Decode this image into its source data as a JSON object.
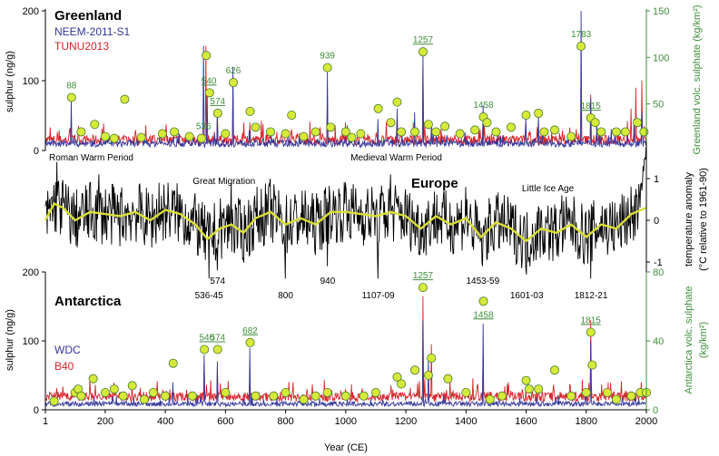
{
  "colors": {
    "neem": "#35369a",
    "tunu": "#d8232a",
    "europe": "#000000",
    "smooth": "#d8df36",
    "volc_fill": "#d6ea3a",
    "volc_stroke": "#4a7a2a",
    "green_text": "#3f8f3a"
  },
  "x_axis": {
    "label": "Year (CE)",
    "ticks": [
      "1",
      "200",
      "400",
      "600",
      "800",
      "1000",
      "1200",
      "1400",
      "1600",
      "1800",
      "2000"
    ],
    "tick_values": [
      1,
      200,
      400,
      600,
      800,
      1000,
      1200,
      1400,
      1600,
      1800,
      2000
    ]
  },
  "greenland": {
    "title": "Greenland",
    "legend": [
      {
        "name": "NEEM-2011-S1",
        "color_key": "neem"
      },
      {
        "name": "TUNU2013",
        "color_key": "tunu"
      }
    ],
    "ylabel_left": "sulphur (ng/g)",
    "ylabel_right": "Greenland volc. sulphate (kg/km²)",
    "left_ticks": [
      "0",
      "100",
      "200"
    ],
    "left_tick_values": [
      0,
      100,
      200
    ],
    "right_ticks": [
      "50",
      "100",
      "150"
    ],
    "right_tick_values": [
      50,
      100,
      150
    ],
    "eruption_labels": [
      {
        "text": "88",
        "year": 88,
        "underline": false
      },
      {
        "text": "536",
        "year": 527,
        "underline": false
      },
      {
        "text": "540",
        "year": 545,
        "underline": true
      },
      {
        "text": "574",
        "year": 574,
        "underline": true
      },
      {
        "text": "626",
        "year": 626,
        "underline": false
      },
      {
        "text": "939",
        "year": 939,
        "underline": false
      },
      {
        "text": "1257",
        "year": 1257,
        "underline": true
      },
      {
        "text": "1458",
        "year": 1458,
        "underline": false
      },
      {
        "text": "1783",
        "year": 1783,
        "underline": false
      },
      {
        "text": "1815",
        "year": 1815,
        "underline": true
      }
    ]
  },
  "europe": {
    "title": "Europe",
    "ylabel_right_1": "temperature anomaly",
    "ylabel_right_2": "(°C relative to 1961-90)",
    "right_ticks": [
      "-1",
      "0",
      "1"
    ],
    "right_tick_values": [
      -1,
      0,
      1
    ],
    "period_labels": [
      {
        "text": "Roman Warm Period",
        "year": 0
      },
      {
        "text": "Great Migration",
        "year": 485
      },
      {
        "text": "Medieval Warm Period",
        "year": 1010
      },
      {
        "text": "Little Ice Age",
        "year": 1580
      }
    ],
    "cold_labels": [
      {
        "text": "574",
        "year": 574,
        "row": 1
      },
      {
        "text": "536-45",
        "year": 545,
        "row": 2
      },
      {
        "text": "800",
        "year": 800,
        "row": 2
      },
      {
        "text": "940",
        "year": 940,
        "row": 1
      },
      {
        "text": "1107-09",
        "year": 1108,
        "row": 2
      },
      {
        "text": "1453-59",
        "year": 1456,
        "row": 1
      },
      {
        "text": "1601-03",
        "year": 1602,
        "row": 2
      },
      {
        "text": "1812-21",
        "year": 1816,
        "row": 2
      }
    ]
  },
  "antarctica": {
    "title": "Antarctica",
    "legend": [
      {
        "name": "WDC",
        "color_key": "neem"
      },
      {
        "name": "B40",
        "color_key": "tunu"
      }
    ],
    "ylabel_left": "sulphur (ng/g)",
    "ylabel_right_1": "Antarctica volc. sulphate",
    "ylabel_right_2": "(kg/km²)",
    "left_ticks": [
      "0",
      "100",
      "200"
    ],
    "left_tick_values": [
      0,
      100,
      200
    ],
    "right_ticks": [
      "0",
      "40",
      "80"
    ],
    "right_tick_values": [
      0,
      40,
      80
    ],
    "eruption_labels": [
      {
        "text": "540",
        "year": 538,
        "underline": true
      },
      {
        "text": "574",
        "year": 574,
        "underline": true
      },
      {
        "text": "682",
        "year": 682,
        "underline": true
      },
      {
        "text": "1257",
        "year": 1257,
        "underline": true
      },
      {
        "text": "1458",
        "year": 1458,
        "underline": true
      },
      {
        "text": "1815",
        "year": 1815,
        "underline": true
      }
    ]
  },
  "chart_data": [
    {
      "type": "line",
      "title": "Greenland",
      "xlabel": "Year (CE)",
      "ylabel": "sulphur (ng/g)",
      "xlim": [
        1,
        2000
      ],
      "ylim": [
        0,
        200
      ],
      "y2label": "Greenland volc. sulphate (kg/km²)",
      "y2lim": [
        0,
        150
      ],
      "series": [
        {
          "name": "NEEM-2011-S1",
          "peaks": [
            [
              88,
              72
            ],
            [
              527,
              150
            ],
            [
              540,
              85
            ],
            [
              574,
              58
            ],
            [
              626,
              120
            ],
            [
              939,
              115
            ],
            [
              1108,
              45
            ],
            [
              1171,
              60
            ],
            [
              1230,
              55
            ],
            [
              1257,
              140
            ],
            [
              1285,
              40
            ],
            [
              1458,
              65
            ],
            [
              1600,
              45
            ],
            [
              1641,
              50
            ],
            [
              1783,
              200
            ],
            [
              1815,
              75
            ],
            [
              1835,
              40
            ],
            [
              1960,
              45
            ],
            [
              1985,
              55
            ]
          ]
        },
        {
          "name": "TUNU2013",
          "peaks": [
            [
              536,
              150
            ],
            [
              574,
              50
            ],
            [
              626,
              80
            ],
            [
              682,
              40
            ],
            [
              820,
              30
            ],
            [
              939,
              80
            ],
            [
              1000,
              40
            ],
            [
              1171,
              50
            ],
            [
              1257,
              120
            ],
            [
              1458,
              45
            ],
            [
              1600,
              40
            ],
            [
              1783,
              120
            ],
            [
              1815,
              80
            ],
            [
              1950,
              60
            ],
            [
              1965,
              90
            ],
            [
              1985,
              100
            ]
          ]
        }
      ],
      "volcanic_sulphate": [
        [
          88,
          57
        ],
        [
          120,
          20
        ],
        [
          165,
          28
        ],
        [
          200,
          15
        ],
        [
          230,
          13
        ],
        [
          265,
          55
        ],
        [
          320,
          14
        ],
        [
          390,
          18
        ],
        [
          430,
          20
        ],
        [
          480,
          15
        ],
        [
          520,
          13
        ],
        [
          536,
          102
        ],
        [
          547,
          62
        ],
        [
          574,
          40
        ],
        [
          600,
          18
        ],
        [
          626,
          73
        ],
        [
          682,
          42
        ],
        [
          700,
          25
        ],
        [
          750,
          20
        ],
        [
          800,
          18
        ],
        [
          820,
          38
        ],
        [
          860,
          15
        ],
        [
          900,
          20
        ],
        [
          939,
          89
        ],
        [
          950,
          25
        ],
        [
          1000,
          20
        ],
        [
          1020,
          14
        ],
        [
          1050,
          18
        ],
        [
          1108,
          45
        ],
        [
          1150,
          30
        ],
        [
          1171,
          52
        ],
        [
          1185,
          20
        ],
        [
          1230,
          20
        ],
        [
          1257,
          106
        ],
        [
          1275,
          28
        ],
        [
          1300,
          20
        ],
        [
          1330,
          26
        ],
        [
          1380,
          18
        ],
        [
          1430,
          22
        ],
        [
          1458,
          36
        ],
        [
          1470,
          30
        ],
        [
          1500,
          20
        ],
        [
          1550,
          25
        ],
        [
          1600,
          38
        ],
        [
          1641,
          40
        ],
        [
          1660,
          20
        ],
        [
          1695,
          22
        ],
        [
          1750,
          15
        ],
        [
          1783,
          112
        ],
        [
          1815,
          35
        ],
        [
          1830,
          30
        ],
        [
          1850,
          20
        ],
        [
          1900,
          20
        ],
        [
          1930,
          20
        ],
        [
          1970,
          30
        ],
        [
          1992,
          20
        ]
      ]
    },
    {
      "type": "line",
      "title": "Europe",
      "xlabel": "Year (CE)",
      "ylabel": "temperature anomaly (°C relative to 1961-90)",
      "xlim": [
        1,
        2000
      ],
      "ylim": [
        -1.6,
        1.9
      ],
      "series": [
        {
          "name": "",
          "minima": [
            [
              574,
              -1.2
            ],
            [
              545,
              -1.4
            ],
            [
              800,
              -1.4
            ],
            [
              940,
              -1.1
            ],
            [
              1108,
              -1.4
            ],
            [
              1456,
              -1.1
            ],
            [
              1602,
              -1.3
            ],
            [
              1816,
              -1.4
            ]
          ],
          "maxima": [
            [
              40,
              1.4
            ],
            [
              180,
              1.1
            ],
            [
              380,
              0.9
            ],
            [
              620,
              0.9
            ],
            [
              750,
              1.0
            ],
            [
              1000,
              0.9
            ],
            [
              1150,
              1.1
            ],
            [
              1400,
              0.8
            ],
            [
              1720,
              0.6
            ],
            [
              2000,
              1.8
            ]
          ]
        },
        {
          "name": "",
          "smoothed": [
            [
              1,
              0.0
            ],
            [
              30,
              0.4
            ],
            [
              60,
              0.3
            ],
            [
              100,
              0.0
            ],
            [
              150,
              0.2
            ],
            [
              200,
              0.15
            ],
            [
              250,
              0.1
            ],
            [
              300,
              0.2
            ],
            [
              350,
              0.0
            ],
            [
              400,
              0.25
            ],
            [
              450,
              0.15
            ],
            [
              500,
              -0.1
            ],
            [
              540,
              -0.45
            ],
            [
              580,
              -0.2
            ],
            [
              620,
              -0.1
            ],
            [
              660,
              -0.3
            ],
            [
              700,
              0.05
            ],
            [
              750,
              0.2
            ],
            [
              800,
              -0.1
            ],
            [
              850,
              0.05
            ],
            [
              900,
              -0.1
            ],
            [
              950,
              0.2
            ],
            [
              1000,
              0.2
            ],
            [
              1050,
              0.15
            ],
            [
              1100,
              0.1
            ],
            [
              1150,
              0.2
            ],
            [
              1200,
              0.1
            ],
            [
              1250,
              -0.2
            ],
            [
              1300,
              0.1
            ],
            [
              1350,
              -0.1
            ],
            [
              1400,
              0.05
            ],
            [
              1450,
              -0.4
            ],
            [
              1500,
              -0.05
            ],
            [
              1550,
              -0.2
            ],
            [
              1600,
              -0.5
            ],
            [
              1650,
              -0.2
            ],
            [
              1700,
              -0.3
            ],
            [
              1750,
              -0.1
            ],
            [
              1800,
              -0.4
            ],
            [
              1850,
              -0.1
            ],
            [
              1900,
              -0.2
            ],
            [
              1950,
              0.15
            ],
            [
              2000,
              0.3
            ]
          ]
        }
      ]
    },
    {
      "type": "line",
      "title": "Antarctica",
      "xlabel": "Year (CE)",
      "ylabel": "sulphur (ng/g)",
      "xlim": [
        1,
        2000
      ],
      "ylim": [
        0,
        200
      ],
      "y2label": "Antarctica volc. sulphate (kg/km²)",
      "y2lim": [
        0,
        80
      ],
      "series": [
        {
          "name": "WDC",
          "peaks": [
            [
              426,
              40
            ],
            [
              530,
              80
            ],
            [
              574,
              70
            ],
            [
              682,
              90
            ],
            [
              1257,
              130
            ],
            [
              1275,
              75
            ],
            [
              1458,
              125
            ],
            [
              1815,
              100
            ]
          ]
        },
        {
          "name": "B40",
          "peaks": [
            [
              100,
              30
            ],
            [
              530,
              70
            ],
            [
              574,
              60
            ],
            [
              682,
              55
            ],
            [
              1000,
              30
            ],
            [
              1257,
              165
            ],
            [
              1285,
              95
            ],
            [
              1458,
              80
            ],
            [
              1600,
              30
            ],
            [
              1815,
              130
            ]
          ]
        }
      ],
      "volcanic_sulphate": [
        [
          30,
          5
        ],
        [
          100,
          10
        ],
        [
          110,
          12
        ],
        [
          120,
          8
        ],
        [
          160,
          18
        ],
        [
          200,
          10
        ],
        [
          230,
          12
        ],
        [
          260,
          8
        ],
        [
          290,
          14
        ],
        [
          330,
          6
        ],
        [
          360,
          10
        ],
        [
          400,
          8
        ],
        [
          426,
          27
        ],
        [
          490,
          8
        ],
        [
          530,
          35
        ],
        [
          574,
          35
        ],
        [
          600,
          10
        ],
        [
          682,
          39
        ],
        [
          700,
          8
        ],
        [
          760,
          8
        ],
        [
          800,
          10
        ],
        [
          860,
          6
        ],
        [
          900,
          8
        ],
        [
          939,
          10
        ],
        [
          1000,
          8
        ],
        [
          1060,
          8
        ],
        [
          1100,
          10
        ],
        [
          1171,
          19
        ],
        [
          1185,
          15
        ],
        [
          1230,
          23
        ],
        [
          1257,
          71
        ],
        [
          1275,
          20
        ],
        [
          1285,
          30
        ],
        [
          1340,
          18
        ],
        [
          1400,
          10
        ],
        [
          1458,
          63
        ],
        [
          1480,
          6
        ],
        [
          1520,
          8
        ],
        [
          1600,
          17
        ],
        [
          1610,
          12
        ],
        [
          1641,
          12
        ],
        [
          1695,
          23
        ],
        [
          1750,
          8
        ],
        [
          1800,
          10
        ],
        [
          1815,
          45
        ],
        [
          1820,
          26
        ],
        [
          1870,
          10
        ],
        [
          1900,
          6
        ],
        [
          1950,
          8
        ],
        [
          1980,
          10
        ],
        [
          2000,
          10
        ]
      ]
    }
  ]
}
